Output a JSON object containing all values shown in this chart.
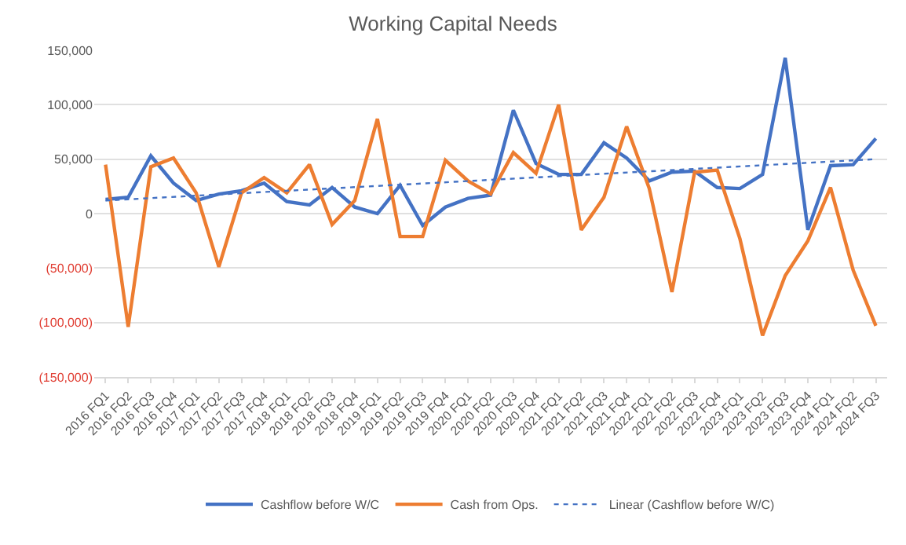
{
  "chart_data": {
    "type": "line",
    "title": "Working Capital Needs",
    "categories": [
      "2016 FQ1",
      "2016 FQ2",
      "2016 FQ3",
      "2016 FQ4",
      "2017 FQ1",
      "2017 FQ2",
      "2017 FQ3",
      "2017 FQ4",
      "2018 FQ1",
      "2018 FQ2",
      "2018 FQ3",
      "2018 FQ4",
      "2019 FQ1",
      "2019 FQ2",
      "2019 FQ3",
      "2019 FQ4",
      "2020 FQ1",
      "2020 FQ2",
      "2020 FQ3",
      "2020 FQ4",
      "2021 FQ1",
      "2021 FQ2",
      "2021 FQ3",
      "2021 FQ4",
      "2022 FQ1",
      "2022 FQ2",
      "2022 FQ3",
      "2022 FQ4",
      "2023 FQ1",
      "2023 FQ2",
      "2023 FQ3",
      "2023 FQ4",
      "2024 FQ1",
      "2024 FQ2",
      "2024 FQ3"
    ],
    "series": [
      {
        "name": "Cashflow before W/C",
        "color": "#4472c4",
        "values": [
          13000,
          15000,
          53000,
          28000,
          12000,
          18000,
          21000,
          28000,
          11000,
          8000,
          24000,
          6000,
          0,
          26000,
          -11000,
          6000,
          14000,
          17000,
          95000,
          46000,
          36000,
          36000,
          65000,
          51000,
          30000,
          38000,
          39000,
          24000,
          23000,
          36000,
          143000,
          -15000,
          44000,
          45000,
          69000
        ]
      },
      {
        "name": "Cash from Ops.",
        "color": "#ed7d31",
        "values": [
          45000,
          -104000,
          43000,
          51000,
          19000,
          -49000,
          19000,
          33000,
          19000,
          45000,
          -10000,
          12000,
          87000,
          -21000,
          -21000,
          49000,
          30000,
          18000,
          56000,
          37000,
          100000,
          -15000,
          15000,
          80000,
          23000,
          -72000,
          38000,
          40000,
          -23000,
          -112000,
          -57000,
          -25000,
          24000,
          -52000,
          -103000
        ]
      },
      {
        "name": "Linear (Cashflow before W/C)",
        "type": "line",
        "line_style": "dotted",
        "color": "#4472c4",
        "x": [
          "2016 FQ1",
          "2024 FQ3"
        ],
        "values": [
          12000,
          50000
        ]
      }
    ],
    "ylim": [
      -150000,
      150000
    ],
    "yticks": [
      {
        "value": -150000,
        "label": "(150,000)"
      },
      {
        "value": -100000,
        "label": "(100,000)"
      },
      {
        "value": -50000,
        "label": "(50,000)"
      },
      {
        "value": 0,
        "label": "0"
      },
      {
        "value": 50000,
        "label": "50,000"
      },
      {
        "value": 100000,
        "label": "100,000"
      },
      {
        "value": 150000,
        "label": "150,000"
      }
    ],
    "grid": "y",
    "legend": "bottom",
    "marker": "none",
    "line_style": "solid"
  }
}
